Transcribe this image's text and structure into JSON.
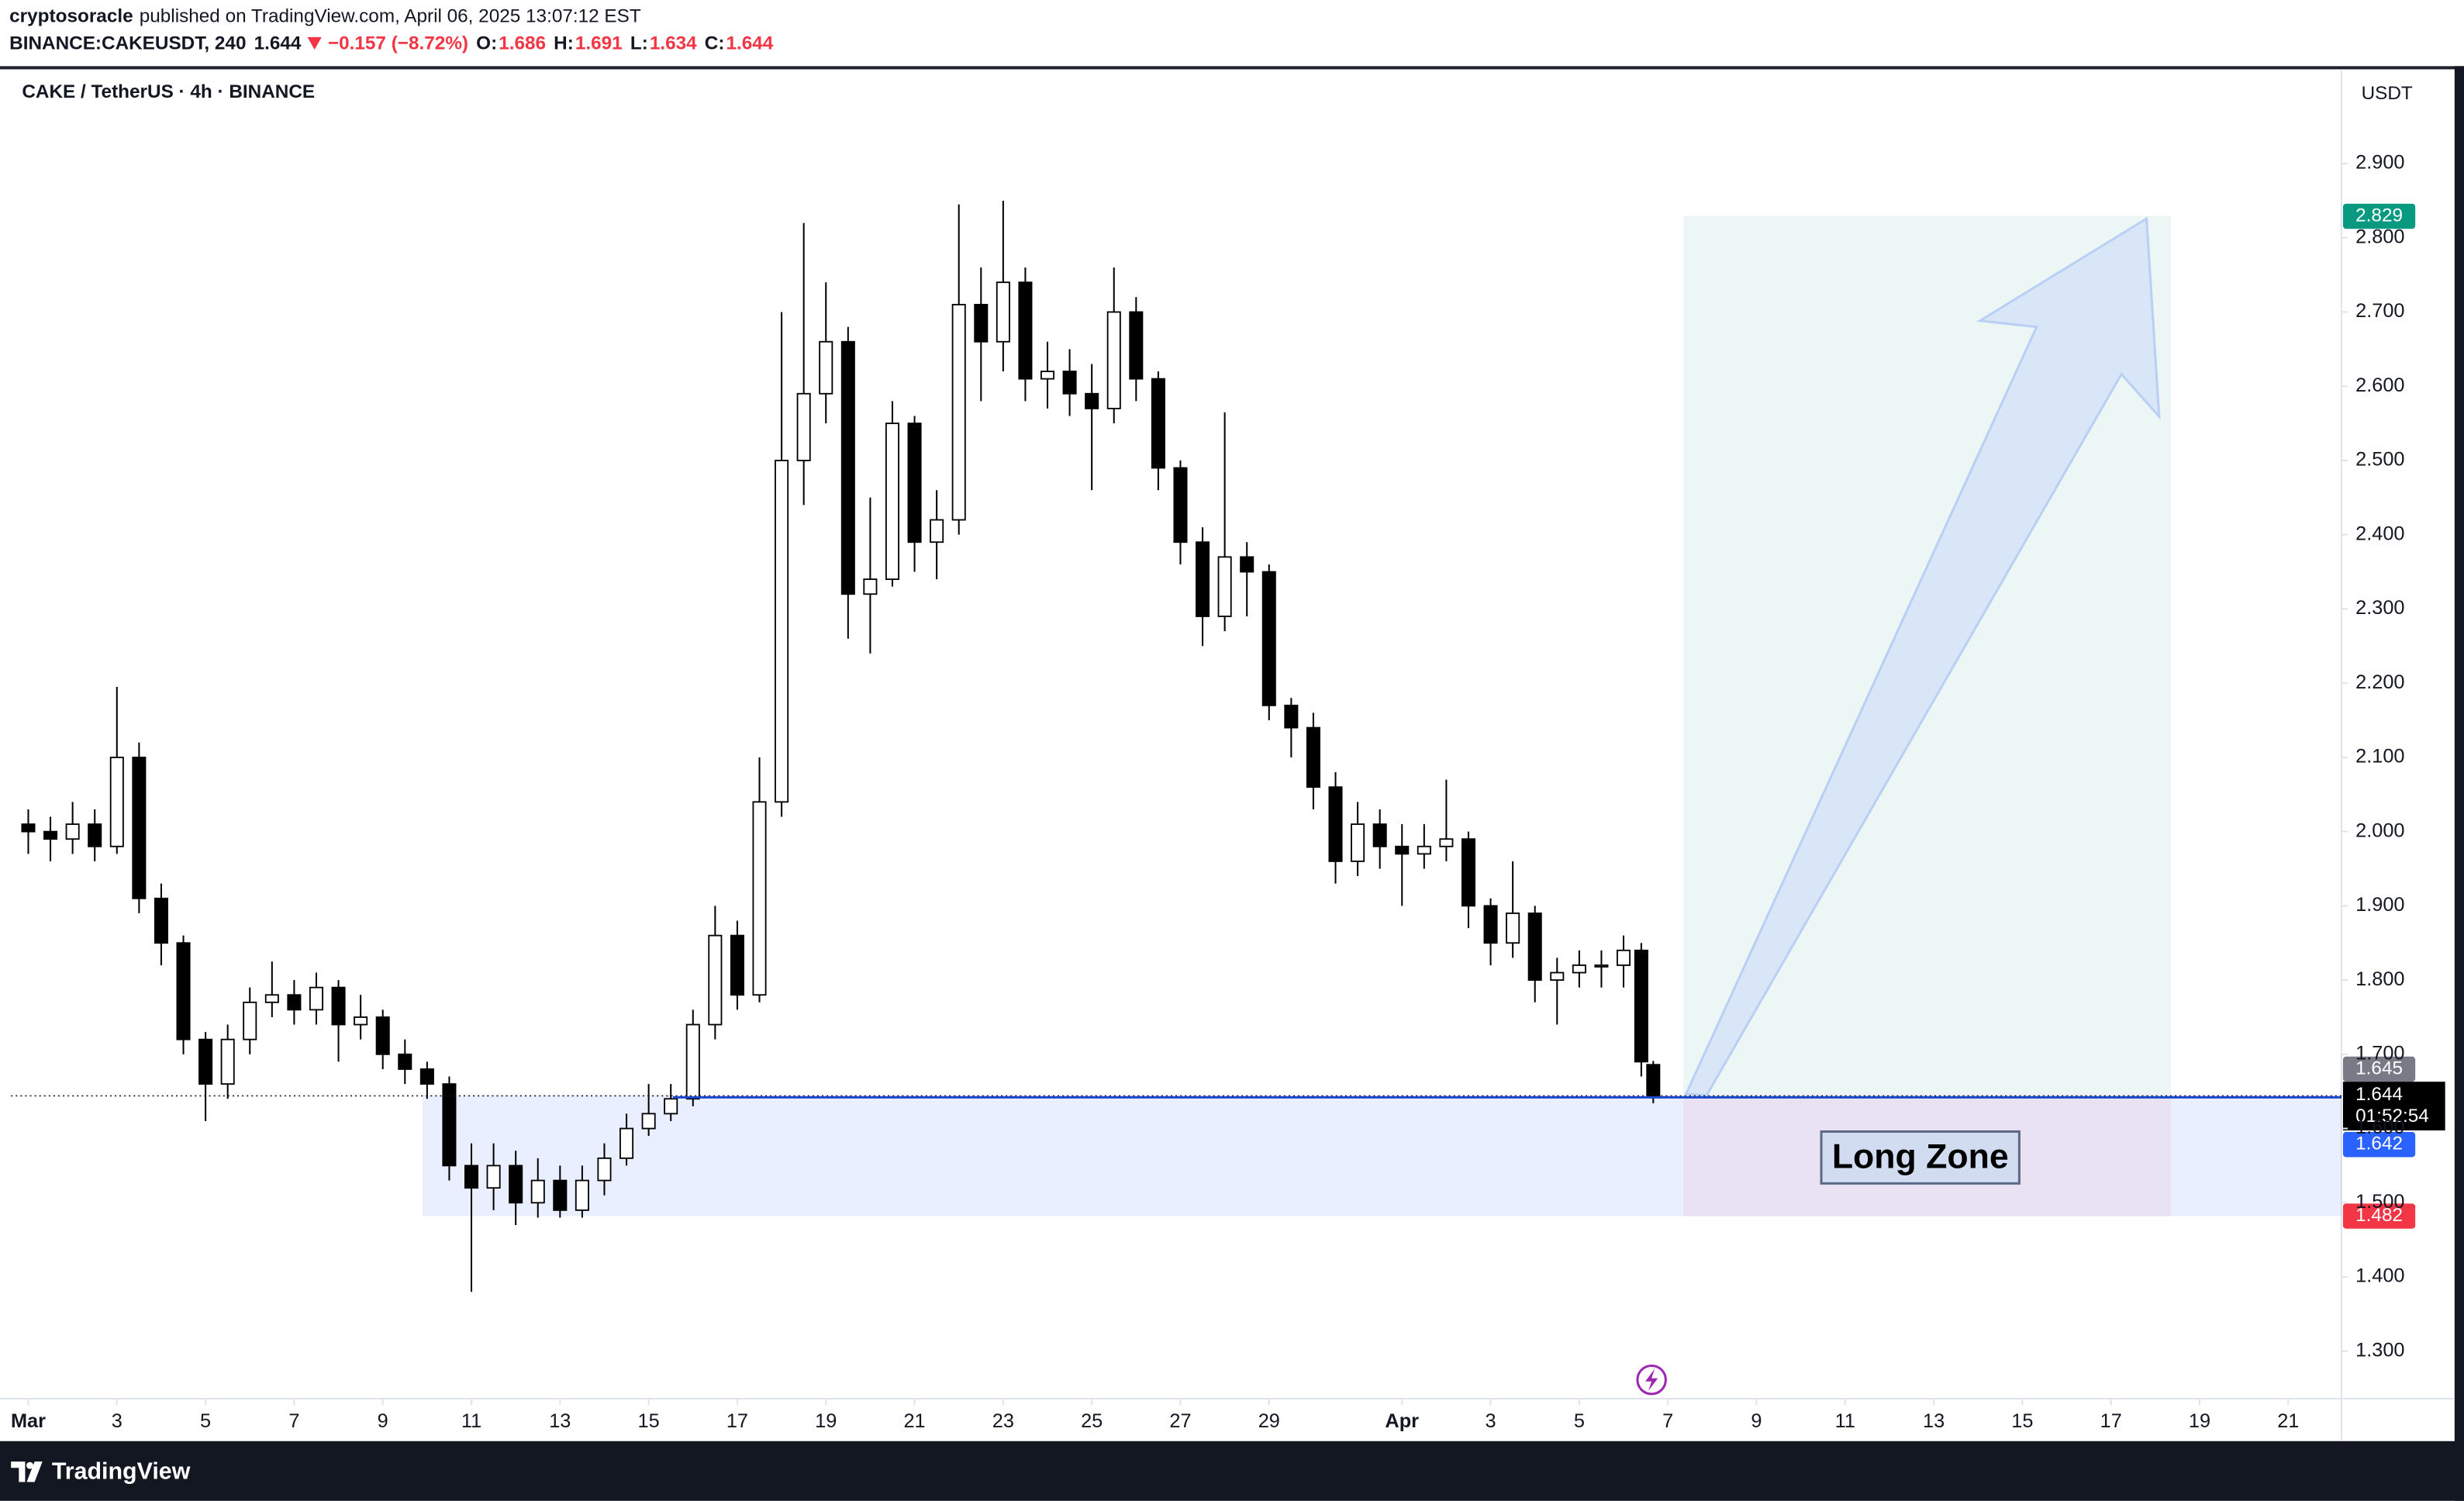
{
  "header": {
    "author": "cryptosoracle",
    "published": "published on TradingView.com, April 06, 2025 13:07:12 EST",
    "symbol": "BINANCE:CAKEUSDT, 240",
    "change": "−0.157 (−8.72%)",
    "o": "O:",
    "h": "H:",
    "l": "L:",
    "c": "C:"
  },
  "chart_data": {
    "type": "candlestick",
    "title": "CAKE / TetherUS · 4h · BINANCE",
    "y_unit": "USDT",
    "x": [
      0,
      0.5,
      1,
      1.5,
      2,
      2.5,
      3,
      3.5,
      4,
      4.5,
      5,
      5.5,
      6,
      6.5,
      7,
      7.5,
      8,
      8.5,
      9,
      9.5,
      10,
      10.5,
      11,
      11.5,
      12,
      12.5,
      13,
      13.5,
      14,
      14.5,
      15,
      15.5,
      16,
      16.5,
      17,
      17.5,
      18,
      18.5,
      19,
      19.5,
      20,
      20.5,
      21,
      21.5,
      22,
      22.5,
      23,
      23.5,
      24,
      24.5,
      25,
      25.5,
      26,
      26.5,
      27,
      27.5,
      28,
      28.5,
      29,
      29.5,
      30,
      30.5,
      31,
      31.5,
      32,
      32.5,
      33,
      33.5,
      34,
      34.5,
      35,
      35.5,
      36,
      36.4,
      36.67
    ],
    "open": [
      2.01,
      2.0,
      1.99,
      2.01,
      1.98,
      2.1,
      1.91,
      1.85,
      1.72,
      1.66,
      1.72,
      1.77,
      1.78,
      1.76,
      1.79,
      1.74,
      1.75,
      1.7,
      1.68,
      1.66,
      1.55,
      1.52,
      1.55,
      1.5,
      1.53,
      1.49,
      1.53,
      1.56,
      1.6,
      1.62,
      1.64,
      1.74,
      1.86,
      1.78,
      2.04,
      2.5,
      2.59,
      2.66,
      2.32,
      2.34,
      2.55,
      2.39,
      2.42,
      2.71,
      2.66,
      2.74,
      2.61,
      2.62,
      2.59,
      2.57,
      2.7,
      2.61,
      2.49,
      2.39,
      2.29,
      2.37,
      2.35,
      2.17,
      2.14,
      2.06,
      1.96,
      2.01,
      1.98,
      1.97,
      1.98,
      1.99,
      1.9,
      1.85,
      1.89,
      1.8,
      1.81,
      1.82,
      1.82,
      1.84,
      1.686
    ],
    "high": [
      2.03,
      2.02,
      2.04,
      2.03,
      2.195,
      2.12,
      1.93,
      1.86,
      1.73,
      1.74,
      1.79,
      1.825,
      1.8,
      1.81,
      1.8,
      1.78,
      1.76,
      1.72,
      1.69,
      1.67,
      1.58,
      1.58,
      1.57,
      1.56,
      1.55,
      1.55,
      1.58,
      1.62,
      1.66,
      1.66,
      1.76,
      1.9,
      1.88,
      2.1,
      2.7,
      2.82,
      2.74,
      2.68,
      2.45,
      2.58,
      2.56,
      2.46,
      2.845,
      2.76,
      2.85,
      2.76,
      2.66,
      2.65,
      2.63,
      2.76,
      2.72,
      2.62,
      2.5,
      2.41,
      2.565,
      2.39,
      2.36,
      2.18,
      2.16,
      2.08,
      2.04,
      2.03,
      2.01,
      2.01,
      2.07,
      2.0,
      1.91,
      1.96,
      1.9,
      1.83,
      1.84,
      1.84,
      1.86,
      1.85,
      1.691
    ],
    "low": [
      1.97,
      1.96,
      1.97,
      1.96,
      1.97,
      1.89,
      1.82,
      1.7,
      1.61,
      1.64,
      1.7,
      1.75,
      1.74,
      1.74,
      1.69,
      1.72,
      1.68,
      1.66,
      1.64,
      1.53,
      1.38,
      1.49,
      1.47,
      1.48,
      1.48,
      1.48,
      1.51,
      1.55,
      1.59,
      1.61,
      1.63,
      1.72,
      1.76,
      1.77,
      2.02,
      2.44,
      2.55,
      2.26,
      2.24,
      2.33,
      2.35,
      2.34,
      2.4,
      2.58,
      2.62,
      2.58,
      2.57,
      2.56,
      2.46,
      2.55,
      2.58,
      2.46,
      2.36,
      2.25,
      2.27,
      2.29,
      2.15,
      2.1,
      2.03,
      1.93,
      1.94,
      1.95,
      1.9,
      1.95,
      1.96,
      1.87,
      1.82,
      1.83,
      1.77,
      1.74,
      1.79,
      1.79,
      1.79,
      1.67,
      1.634
    ],
    "close": [
      2.0,
      1.99,
      2.01,
      1.98,
      2.1,
      1.91,
      1.85,
      1.72,
      1.66,
      1.72,
      1.77,
      1.78,
      1.76,
      1.79,
      1.74,
      1.75,
      1.7,
      1.68,
      1.66,
      1.55,
      1.52,
      1.55,
      1.5,
      1.53,
      1.49,
      1.53,
      1.56,
      1.6,
      1.62,
      1.64,
      1.74,
      1.86,
      1.78,
      2.04,
      2.5,
      2.59,
      2.66,
      2.32,
      2.34,
      2.55,
      2.39,
      2.42,
      2.71,
      2.66,
      2.74,
      2.61,
      2.62,
      2.59,
      2.57,
      2.7,
      2.61,
      2.49,
      2.39,
      2.29,
      2.37,
      2.35,
      2.17,
      2.14,
      2.06,
      1.96,
      2.01,
      1.98,
      1.97,
      1.98,
      1.99,
      1.9,
      1.85,
      1.89,
      1.8,
      1.81,
      1.82,
      1.82,
      1.84,
      1.69,
      1.644
    ],
    "up_color": "#ffffff",
    "down_color": "#000000",
    "wick_color": "#000000",
    "xlim": [
      -0.39,
      52.2
    ],
    "ylim": [
      1.236,
      3.027
    ],
    "xticks": [
      {
        "value": 0,
        "label": "Mar"
      },
      {
        "value": 2,
        "label": "3"
      },
      {
        "value": 4,
        "label": "5"
      },
      {
        "value": 6,
        "label": "7"
      },
      {
        "value": 8,
        "label": "9"
      },
      {
        "value": 10,
        "label": "11"
      },
      {
        "value": 12,
        "label": "13"
      },
      {
        "value": 14,
        "label": "15"
      },
      {
        "value": 16,
        "label": "17"
      },
      {
        "value": 18,
        "label": "19"
      },
      {
        "value": 20,
        "label": "21"
      },
      {
        "value": 22,
        "label": "23"
      },
      {
        "value": 24,
        "label": "25"
      },
      {
        "value": 26,
        "label": "27"
      },
      {
        "value": 28,
        "label": "29"
      },
      {
        "value": 31,
        "label": "Apr"
      },
      {
        "value": 33,
        "label": "3"
      },
      {
        "value": 35,
        "label": "5"
      },
      {
        "value": 37,
        "label": "7"
      },
      {
        "value": 39,
        "label": "9"
      },
      {
        "value": 41,
        "label": "11"
      },
      {
        "value": 43,
        "label": "13"
      },
      {
        "value": 45,
        "label": "15"
      },
      {
        "value": 47,
        "label": "17"
      },
      {
        "value": 49,
        "label": "19"
      },
      {
        "value": 51,
        "label": "21"
      }
    ],
    "yticks": [
      {
        "value": 1.3,
        "label": "1.300"
      },
      {
        "value": 1.4,
        "label": "1.400"
      },
      {
        "value": 1.5,
        "label": "1.500"
      },
      {
        "value": 1.6,
        "label": "1.600"
      },
      {
        "value": 1.7,
        "label": "1.700"
      },
      {
        "value": 1.8,
        "label": "1.800"
      },
      {
        "value": 1.9,
        "label": "1.900"
      },
      {
        "value": 2.0,
        "label": "2.000"
      },
      {
        "value": 2.1,
        "label": "2.100"
      },
      {
        "value": 2.2,
        "label": "2.200"
      },
      {
        "value": 2.3,
        "label": "2.300"
      },
      {
        "value": 2.4,
        "label": "2.400"
      },
      {
        "value": 2.5,
        "label": "2.500"
      },
      {
        "value": 2.6,
        "label": "2.600"
      },
      {
        "value": 2.7,
        "label": "2.700"
      },
      {
        "value": 2.8,
        "label": "2.800"
      },
      {
        "value": 2.9,
        "label": "2.900"
      }
    ],
    "grid": false,
    "levels": {
      "target": 2.829,
      "entry": 1.645,
      "support": 1.642,
      "stop": 1.482
    },
    "countdown": "01:52:54",
    "zone_label": "Long Zone"
  },
  "footer": {
    "brand": "TradingView"
  }
}
